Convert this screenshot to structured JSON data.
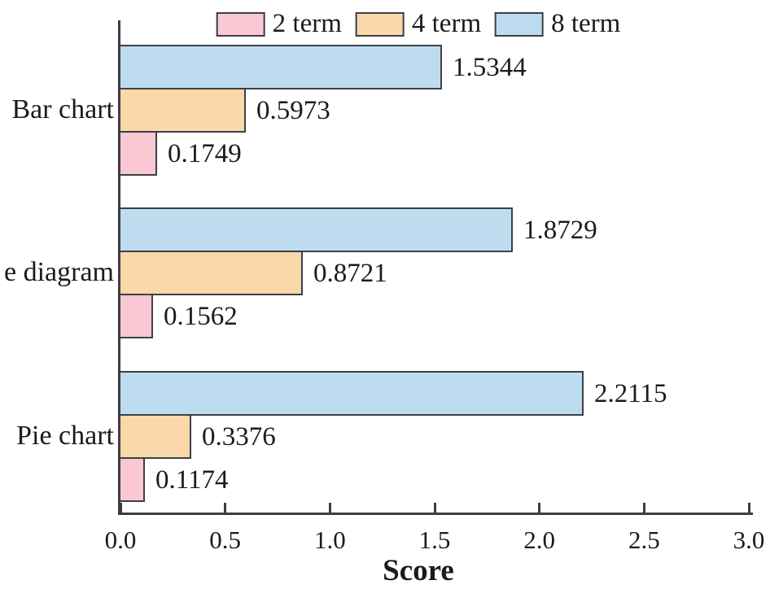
{
  "figure": {
    "background": "#ffffff"
  },
  "chart_data": {
    "type": "bar",
    "orientation": "horizontal",
    "title": "",
    "xlabel": "Score",
    "ylabel": "",
    "categories": [
      "Bar chart",
      "e diagram",
      "Pie chart"
    ],
    "series": [
      {
        "name": "2 term",
        "color": "#f9c8d2",
        "values": [
          0.1749,
          0.1562,
          0.1174
        ]
      },
      {
        "name": "4 term",
        "color": "#fad8aa",
        "values": [
          0.5973,
          0.8721,
          0.3376
        ]
      },
      {
        "name": "8 term",
        "color": "#bedcf0",
        "values": [
          1.5344,
          1.8729,
          2.2115
        ]
      }
    ],
    "xlim": [
      0.0,
      3.0
    ],
    "xticks": [
      "0.0",
      "0.5",
      "1.0",
      "1.5",
      "2.0",
      "2.5",
      "3.0"
    ],
    "grid": false,
    "legend_position": "top",
    "value_labels": true,
    "bar_edge_color": "#3c4046",
    "axis_color": "#3a3d42",
    "text_color": "#1b1b1b"
  }
}
